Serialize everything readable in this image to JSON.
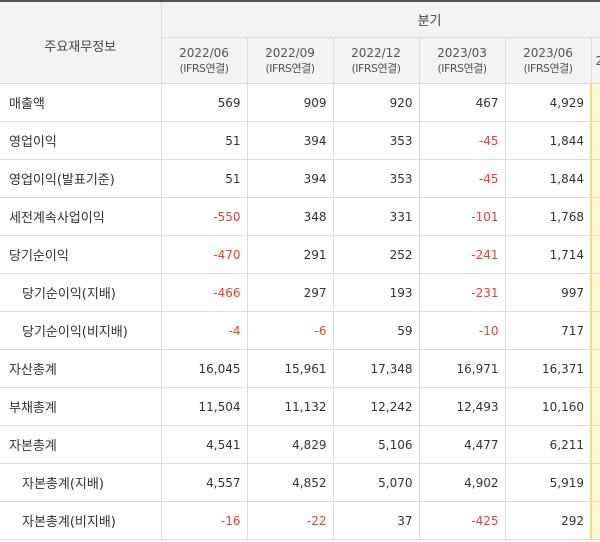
{
  "table": {
    "corner_label": "주요재무정보",
    "group_label": "분기",
    "periods": [
      {
        "date": "2022/06",
        "basis": "(IFRS연결)"
      },
      {
        "date": "2022/09",
        "basis": "(IFRS연결)"
      },
      {
        "date": "2022/12",
        "basis": "(IFRS연결)"
      },
      {
        "date": "2023/03",
        "basis": "(IFRS연결)"
      },
      {
        "date": "2023/06",
        "basis": "(IFRS연결)"
      }
    ],
    "next_period_partial": "2",
    "rows": [
      {
        "label": "매출액",
        "indent": false,
        "values": [
          "569",
          "909",
          "920",
          "467",
          "4,929"
        ]
      },
      {
        "label": "영업이익",
        "indent": false,
        "values": [
          "51",
          "394",
          "353",
          "-45",
          "1,844"
        ]
      },
      {
        "label": "영업이익(발표기준)",
        "indent": false,
        "values": [
          "51",
          "394",
          "353",
          "-45",
          "1,844"
        ]
      },
      {
        "label": "세전계속사업이익",
        "indent": false,
        "values": [
          "-550",
          "348",
          "331",
          "-101",
          "1,768"
        ]
      },
      {
        "label": "당기순이익",
        "indent": false,
        "values": [
          "-470",
          "291",
          "252",
          "-241",
          "1,714"
        ]
      },
      {
        "label": "당기순이익(지배)",
        "indent": true,
        "values": [
          "-466",
          "297",
          "193",
          "-231",
          "997"
        ]
      },
      {
        "label": "당기순이익(비지배)",
        "indent": true,
        "values": [
          "-4",
          "-6",
          "59",
          "-10",
          "717"
        ]
      },
      {
        "label": "자산총계",
        "indent": false,
        "values": [
          "16,045",
          "15,961",
          "17,348",
          "16,971",
          "16,371"
        ]
      },
      {
        "label": "부채총계",
        "indent": false,
        "values": [
          "11,504",
          "11,132",
          "12,242",
          "12,493",
          "10,160"
        ]
      },
      {
        "label": "자본총계",
        "indent": false,
        "values": [
          "4,541",
          "4,829",
          "5,106",
          "4,477",
          "6,211"
        ]
      },
      {
        "label": "자본총계(지배)",
        "indent": true,
        "values": [
          "4,557",
          "4,852",
          "5,070",
          "4,902",
          "5,919"
        ]
      },
      {
        "label": "자본총계(비지배)",
        "indent": true,
        "values": [
          "-16",
          "-22",
          "37",
          "-425",
          "292"
        ]
      }
    ]
  },
  "colors": {
    "negative": "#e8412c",
    "header_bg": "#f3f3f3",
    "highlight_column": "#fff8d6"
  }
}
